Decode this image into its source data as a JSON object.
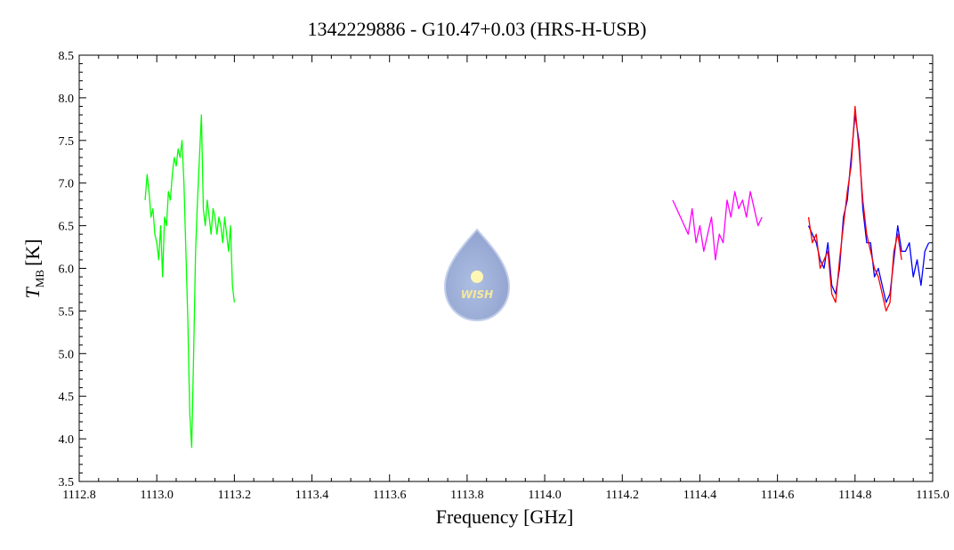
{
  "chart_data": {
    "type": "line",
    "title": "1342229886 - G10.47+0.03 (HRS-H-USB)",
    "x_label": "Frequency [GHz]",
    "y_label": {
      "symbol": "T",
      "subscript": "MB",
      "unit": "[K]"
    },
    "logo_text": "WISH",
    "xlim": [
      1112.8,
      1115.0
    ],
    "xticks": [
      1112.8,
      {
        "value": 1113,
        "label": "1113.0"
      },
      1113.2,
      1113.4,
      1113.6,
      1113.8,
      {
        "value": 1114,
        "label": "1114.0"
      },
      1114.2,
      1114.4,
      1114.6,
      1114.8,
      {
        "value": 1115,
        "label": "1115.0"
      }
    ],
    "ylim": [
      3.5,
      8.5
    ],
    "yticks": [
      3.5,
      {
        "value": 4,
        "label": "4.0"
      },
      4.5,
      {
        "value": 5,
        "label": "5.0"
      },
      5.5,
      {
        "value": 6,
        "label": "6.0"
      },
      6.5,
      {
        "value": 7,
        "label": "7.0"
      },
      7.5,
      {
        "value": 8,
        "label": "8.0"
      },
      8.5
    ],
    "series": [
      {
        "color": "#00ff00",
        "x": [
          1112.97,
          1112.975,
          1112.98,
          1112.985,
          1112.99,
          1112.995,
          1113.0,
          1113.005,
          1113.01,
          1113.015,
          1113.02,
          1113.025,
          1113.03,
          1113.035,
          1113.04,
          1113.045,
          1113.05,
          1113.055,
          1113.06,
          1113.065,
          1113.07,
          1113.075,
          1113.08,
          1113.085,
          1113.09,
          1113.095,
          1113.1,
          1113.105,
          1113.11,
          1113.115,
          1113.12,
          1113.125,
          1113.13,
          1113.135,
          1113.14,
          1113.145,
          1113.15,
          1113.155,
          1113.16,
          1113.165,
          1113.17,
          1113.175,
          1113.18,
          1113.185,
          1113.19,
          1113.195,
          1113.2
        ],
        "values": [
          6.8,
          7.1,
          6.9,
          6.6,
          6.7,
          6.4,
          6.3,
          6.1,
          6.5,
          5.9,
          6.6,
          6.5,
          6.9,
          6.8,
          7.1,
          7.3,
          7.2,
          7.4,
          7.3,
          7.5,
          7.0,
          6.2,
          5.4,
          4.3,
          3.9,
          5.0,
          6.2,
          6.8,
          7.3,
          7.8,
          6.7,
          6.5,
          6.8,
          6.6,
          6.4,
          6.7,
          6.6,
          6.4,
          6.6,
          6.5,
          6.3,
          6.6,
          6.4,
          6.2,
          6.5,
          5.8,
          5.6
        ]
      },
      {
        "color": "#ff00ff",
        "x": [
          1114.33,
          1114.34,
          1114.35,
          1114.36,
          1114.37,
          1114.38,
          1114.39,
          1114.4,
          1114.41,
          1114.42,
          1114.43,
          1114.44,
          1114.45,
          1114.46,
          1114.47,
          1114.48,
          1114.49,
          1114.5,
          1114.51,
          1114.52,
          1114.53,
          1114.54,
          1114.55,
          1114.56
        ],
        "values": [
          6.8,
          6.7,
          6.6,
          6.5,
          6.4,
          6.7,
          6.3,
          6.5,
          6.2,
          6.4,
          6.6,
          6.1,
          6.4,
          6.3,
          6.8,
          6.6,
          6.9,
          6.7,
          6.8,
          6.6,
          6.9,
          6.7,
          6.5,
          6.6
        ]
      },
      {
        "color": "#0000ff",
        "x": [
          1114.68,
          1114.69,
          1114.7,
          1114.71,
          1114.72,
          1114.73,
          1114.74,
          1114.75,
          1114.76,
          1114.77,
          1114.78,
          1114.79,
          1114.8,
          1114.81,
          1114.82,
          1114.83,
          1114.84,
          1114.85,
          1114.86,
          1114.87,
          1114.88,
          1114.89,
          1114.9,
          1114.91,
          1114.92,
          1114.93,
          1114.94,
          1114.95,
          1114.96,
          1114.97,
          1114.98,
          1114.99
        ],
        "values": [
          6.5,
          6.4,
          6.3,
          6.1,
          6.0,
          6.3,
          5.8,
          5.7,
          6.0,
          6.6,
          6.8,
          7.3,
          7.8,
          7.5,
          6.7,
          6.3,
          6.3,
          5.9,
          6.0,
          5.8,
          5.6,
          5.7,
          6.1,
          6.5,
          6.2,
          6.2,
          6.3,
          5.9,
          6.1,
          5.8,
          6.2,
          6.3
        ]
      },
      {
        "color": "#ff0000",
        "x": [
          1114.68,
          1114.69,
          1114.7,
          1114.71,
          1114.72,
          1114.73,
          1114.74,
          1114.75,
          1114.76,
          1114.77,
          1114.78,
          1114.79,
          1114.8,
          1114.81,
          1114.82,
          1114.83,
          1114.84,
          1114.85,
          1114.86,
          1114.87,
          1114.88,
          1114.89,
          1114.9,
          1114.91,
          1114.92
        ],
        "values": [
          6.6,
          6.3,
          6.4,
          6.0,
          6.1,
          6.2,
          5.7,
          5.6,
          6.1,
          6.5,
          6.9,
          7.2,
          7.9,
          7.4,
          6.8,
          6.4,
          6.2,
          6.0,
          5.9,
          5.7,
          5.5,
          5.6,
          6.2,
          6.4,
          6.1
        ]
      }
    ]
  }
}
